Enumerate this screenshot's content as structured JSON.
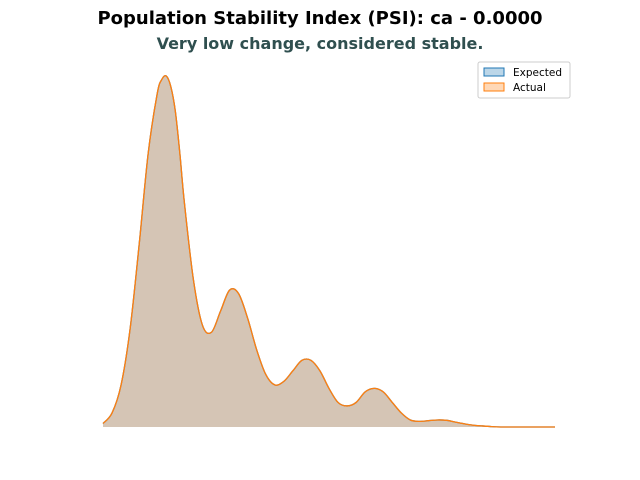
{
  "chart_data": {
    "type": "area",
    "title": "Population Stability Index (PSI): ca - 0.0000",
    "subtitle": "Very low change, considered stable.",
    "xlabel": "",
    "ylabel": "",
    "axes_visible": false,
    "grid": false,
    "legend_position": "top-right",
    "xlim": [
      0,
      100
    ],
    "ylim": [
      0,
      100
    ],
    "x": [
      0,
      2,
      4,
      6,
      8,
      10,
      12,
      13,
      14,
      15,
      16,
      17,
      18,
      20,
      22,
      24,
      26,
      28,
      30,
      32,
      34,
      36,
      38,
      40,
      42,
      44,
      46,
      48,
      50,
      52,
      54,
      56,
      58,
      60,
      62,
      64,
      66,
      68,
      70,
      72,
      74,
      76,
      78,
      80,
      82,
      84,
      86,
      88,
      90,
      92,
      94,
      96,
      98,
      100
    ],
    "series": [
      {
        "name": "Expected",
        "color": "#1f77b4",
        "values": [
          1,
          4,
          12,
          28,
          52,
          78,
          95,
          99,
          100,
          97,
          90,
          78,
          64,
          42,
          29,
          27,
          33,
          39,
          38,
          31,
          22,
          15,
          12,
          13,
          16,
          19,
          19,
          16,
          11,
          7,
          6,
          7,
          10,
          11,
          10,
          7,
          4,
          2,
          1.6,
          1.8,
          2,
          1.9,
          1.4,
          0.9,
          0.5,
          0.3,
          0.1,
          0,
          0,
          0,
          0,
          0,
          0,
          0
        ]
      },
      {
        "name": "Actual",
        "color": "#ff7f0e",
        "values": [
          1,
          4,
          12,
          28,
          52,
          78,
          95,
          99,
          100,
          97,
          90,
          78,
          64,
          42,
          29,
          27,
          33,
          39,
          38,
          31,
          22,
          15,
          12,
          13,
          16,
          19,
          19,
          16,
          11,
          7,
          6,
          7,
          10,
          11,
          10,
          7,
          4,
          2,
          1.6,
          1.8,
          2,
          1.9,
          1.4,
          0.9,
          0.5,
          0.3,
          0.1,
          0,
          0,
          0,
          0,
          0,
          0,
          0
        ]
      }
    ]
  }
}
